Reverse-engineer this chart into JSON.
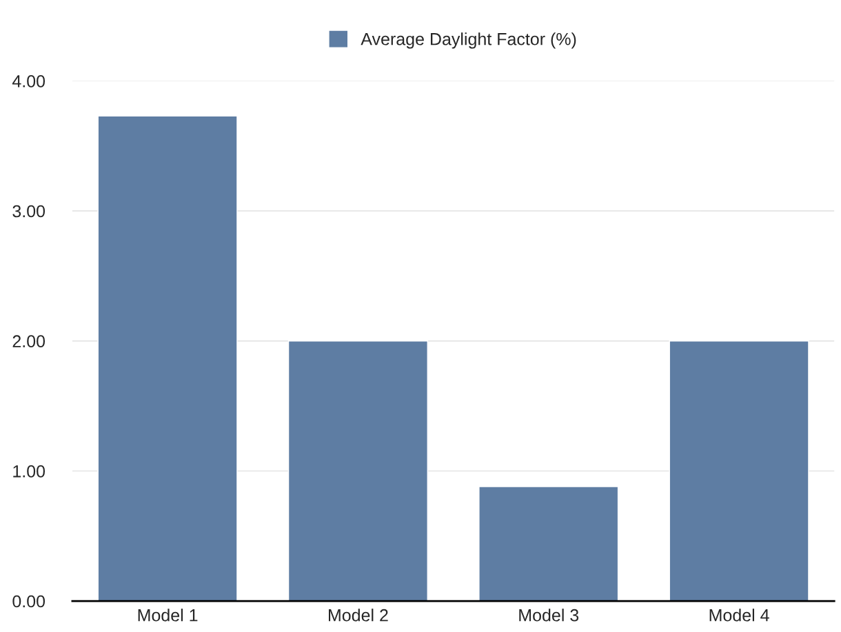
{
  "chart_data": {
    "type": "bar",
    "categories": [
      "Model 1",
      "Model 2",
      "Model 3",
      "Model 4"
    ],
    "series": [
      {
        "name": "Average Daylight Factor (%)",
        "color": "#5e7da3",
        "values": [
          3.73,
          2.0,
          0.88,
          2.0
        ]
      }
    ],
    "ylim": [
      0,
      4
    ],
    "yticks": [
      {
        "value": 0,
        "label": "0.00"
      },
      {
        "value": 1,
        "label": "1.00"
      },
      {
        "value": 2,
        "label": "2.00"
      },
      {
        "value": 3,
        "label": "3.00"
      },
      {
        "value": 4,
        "label": "4.00"
      }
    ],
    "grid": "y",
    "legend": "top"
  }
}
